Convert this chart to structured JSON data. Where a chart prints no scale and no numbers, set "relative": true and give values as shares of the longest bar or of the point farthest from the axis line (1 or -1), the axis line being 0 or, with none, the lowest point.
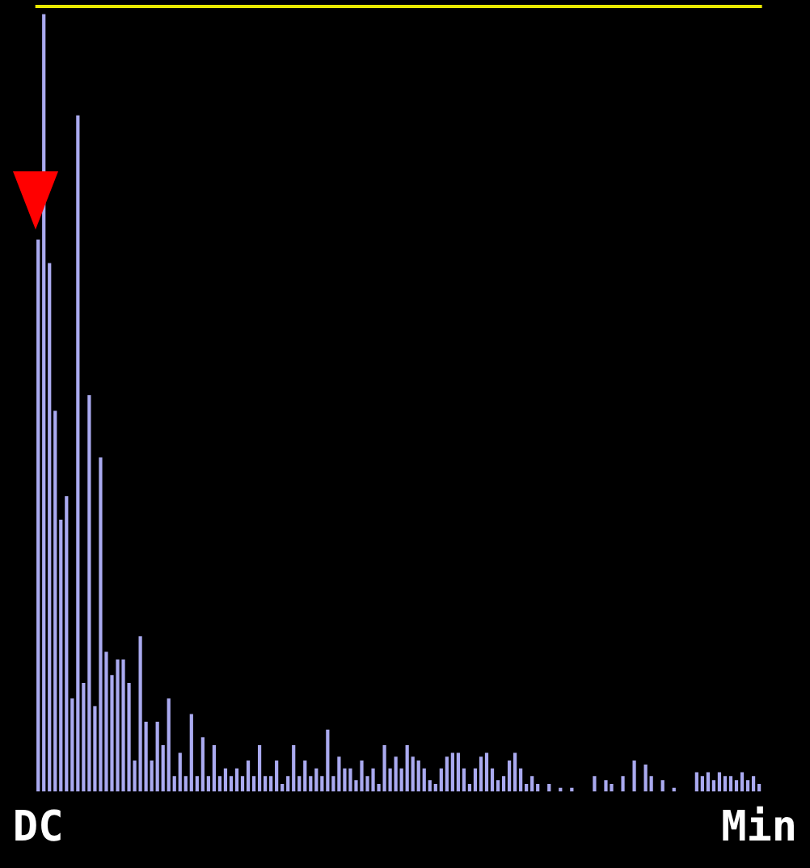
{
  "chart_data": {
    "type": "bar",
    "relative": true,
    "color": "#aaaaf0",
    "categories": [
      "DC",
      null,
      null,
      null,
      null,
      null,
      null,
      null,
      null,
      null,
      null,
      null,
      null,
      null,
      null,
      null,
      null,
      null,
      null,
      null,
      null,
      null,
      null,
      null,
      null,
      null,
      null,
      null,
      null,
      null,
      null,
      null,
      null,
      null,
      null,
      null,
      null,
      null,
      null,
      null,
      null,
      null,
      null,
      null,
      null,
      null,
      null,
      null,
      null,
      null,
      null,
      null,
      null,
      null,
      null,
      null,
      null,
      null,
      null,
      null,
      null,
      null,
      null,
      null,
      null,
      null,
      null,
      null,
      null,
      null,
      null,
      null,
      null,
      null,
      null,
      null,
      null,
      null,
      null,
      null,
      null,
      null,
      null,
      null,
      null,
      null,
      null,
      null,
      null,
      null,
      null,
      null,
      null,
      null,
      null,
      null,
      null,
      null,
      null,
      null,
      null,
      null,
      null,
      null,
      null,
      null,
      null,
      null,
      null,
      null,
      null,
      null,
      null,
      null,
      null,
      null,
      null,
      null,
      null,
      null,
      null,
      null,
      null,
      null,
      null,
      null,
      null,
      "Min"
    ],
    "values": [
      0.71,
      1.0,
      0.68,
      0.49,
      0.35,
      0.38,
      0.12,
      0.87,
      0.14,
      0.51,
      0.11,
      0.43,
      0.18,
      0.15,
      0.17,
      0.17,
      0.14,
      0.04,
      0.2,
      0.09,
      0.04,
      0.09,
      0.06,
      0.12,
      0.02,
      0.05,
      0.02,
      0.1,
      0.02,
      0.07,
      0.02,
      0.06,
      0.02,
      0.03,
      0.02,
      0.03,
      0.02,
      0.04,
      0.02,
      0.06,
      0.02,
      0.02,
      0.04,
      0.01,
      0.02,
      0.06,
      0.02,
      0.04,
      0.02,
      0.03,
      0.02,
      0.08,
      0.02,
      0.045,
      0.03,
      0.03,
      0.015,
      0.04,
      0.02,
      0.03,
      0.01,
      0.06,
      0.03,
      0.045,
      0.03,
      0.06,
      0.045,
      0.04,
      0.03,
      0.015,
      0.01,
      0.03,
      0.045,
      0.05,
      0.05,
      0.03,
      0.01,
      0.03,
      0.045,
      0.05,
      0.03,
      0.015,
      0.02,
      0.04,
      0.05,
      0.03,
      0.01,
      0.02,
      0.01,
      0,
      0.01,
      0,
      0.005,
      0,
      0.005,
      0,
      0,
      0,
      0.02,
      0,
      0.015,
      0.01,
      0,
      0.02,
      0,
      0.04,
      0,
      0.035,
      0.02,
      0,
      0.015,
      0,
      0.005,
      0,
      0,
      0,
      0.025,
      0.02,
      0.025,
      0.015,
      0.025,
      0.02,
      0.02,
      0.015,
      0.025,
      0.015,
      0.02,
      0.01
    ],
    "ref_lines": [
      {
        "axis": "y",
        "value": 1.01,
        "color": "#e8e800"
      }
    ]
  }
}
